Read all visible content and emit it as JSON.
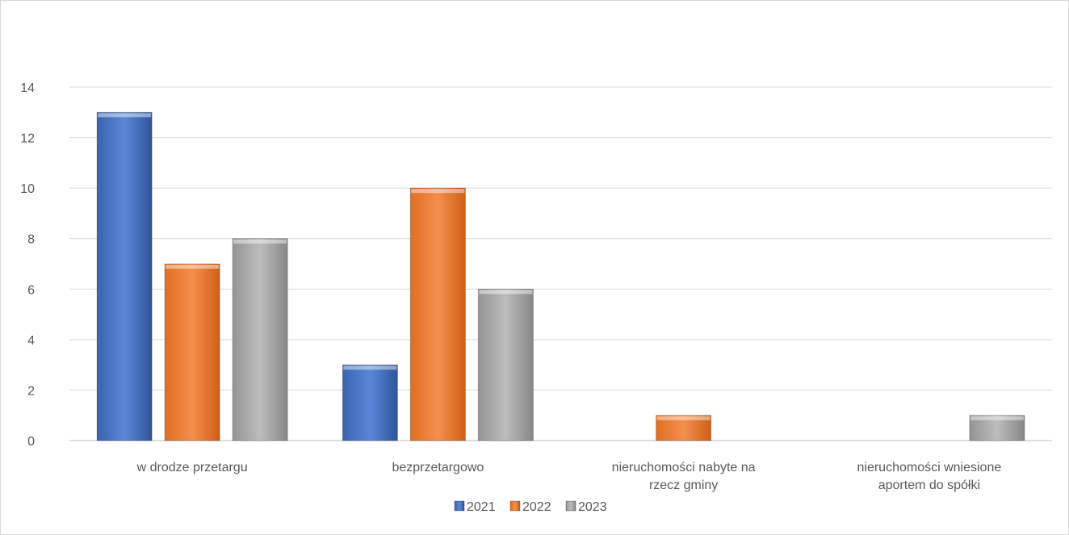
{
  "chart_data": {
    "type": "bar",
    "categories": [
      [
        "w drodze przetargu"
      ],
      [
        "bezprzetargowo"
      ],
      [
        "nieruchomości nabyte na",
        "rzecz  gminy"
      ],
      [
        "nieruchomości wniesione",
        "aportem do spółki"
      ]
    ],
    "series": [
      {
        "name": "2021",
        "values": [
          13,
          3,
          0,
          0
        ],
        "color": "#4472c4"
      },
      {
        "name": "2022",
        "values": [
          7,
          10,
          1,
          0
        ],
        "color": "#ed7d31"
      },
      {
        "name": "2023",
        "values": [
          8,
          6,
          0,
          1
        ],
        "color": "#a5a5a5"
      }
    ],
    "ylim": [
      0,
      14
    ],
    "yticks": [
      0,
      2,
      4,
      6,
      8,
      10,
      12,
      14
    ],
    "grid": true,
    "legend": "bottom"
  }
}
